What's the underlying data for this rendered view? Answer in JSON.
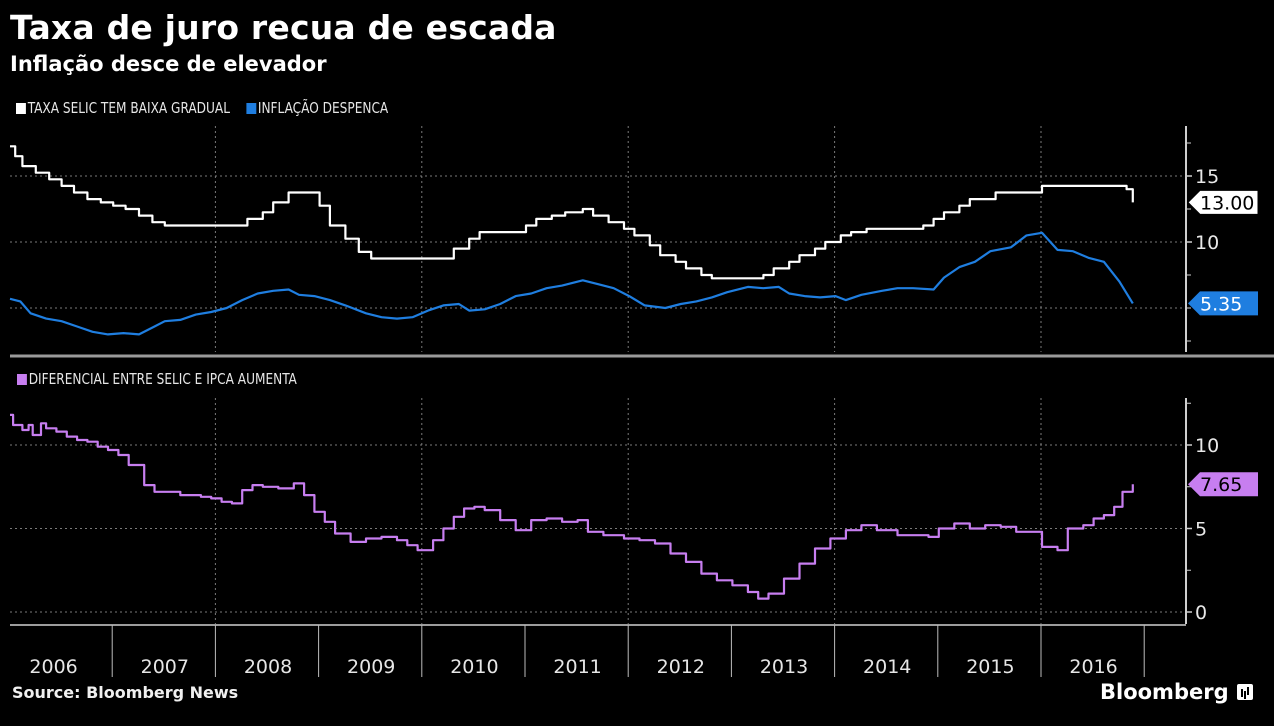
{
  "header": {
    "title": "Taxa de juro recua de escada",
    "subtitle": "Inflação desce de elevador"
  },
  "footer": {
    "source": "Source: Bloomberg News",
    "brand": "Bloomberg"
  },
  "colors": {
    "selic": "#ffffff",
    "ipca": "#1f7ee0",
    "spread": "#c77ef0",
    "grid": "#7a7a7a",
    "axis": "#cfcfcf"
  },
  "chart_data": [
    {
      "type": "line",
      "panel": "top",
      "title": "Taxa de juro recua de escada",
      "legend": [
        {
          "name": "TAXA SELIC TEM BAIXA GRADUAL",
          "color": "#ffffff"
        },
        {
          "name": "INFLAÇÃO DESPENCA",
          "color": "#1f7ee0"
        }
      ],
      "legend_position": "top-left",
      "ylim": [
        2,
        19
      ],
      "yticks": [
        15,
        10
      ],
      "ytick_labels": [
        "15",
        "10"
      ],
      "grid": true,
      "series": [
        {
          "name": "TAXA SELIC TEM BAIXA GRADUAL",
          "style": "step",
          "last_value_label": "13.00",
          "x": [
            2006.0,
            2006.05,
            2006.12,
            2006.25,
            2006.38,
            2006.5,
            2006.62,
            2006.75,
            2006.88,
            2007.0,
            2007.12,
            2007.25,
            2007.38,
            2007.5,
            2007.62,
            2008.3,
            2008.45,
            2008.55,
            2008.7,
            2008.75,
            2009.0,
            2009.1,
            2009.25,
            2009.38,
            2009.5,
            2010.3,
            2010.45,
            2010.55,
            2011.0,
            2011.1,
            2011.25,
            2011.38,
            2011.55,
            2011.65,
            2011.8,
            2011.95,
            2012.05,
            2012.2,
            2012.3,
            2012.45,
            2012.55,
            2012.7,
            2012.8,
            2013.3,
            2013.4,
            2013.55,
            2013.65,
            2013.8,
            2013.9,
            2014.05,
            2014.15,
            2014.3,
            2014.6,
            2014.85,
            2014.95,
            2015.05,
            2015.2,
            2015.3,
            2015.55,
            2016.0,
            2016.55,
            2016.82,
            2016.88
          ],
          "values": [
            17.25,
            16.5,
            15.75,
            15.25,
            14.75,
            14.25,
            13.75,
            13.25,
            13.0,
            12.75,
            12.5,
            12.0,
            11.5,
            11.25,
            11.25,
            11.75,
            12.25,
            13.0,
            13.75,
            13.75,
            12.75,
            11.25,
            10.25,
            9.25,
            8.75,
            9.5,
            10.25,
            10.75,
            11.25,
            11.75,
            12.0,
            12.25,
            12.5,
            12.0,
            11.5,
            11.0,
            10.5,
            9.75,
            9.0,
            8.5,
            8.0,
            7.5,
            7.25,
            7.5,
            8.0,
            8.5,
            9.0,
            9.5,
            10.0,
            10.5,
            10.75,
            11.0,
            11.0,
            11.25,
            11.75,
            12.25,
            12.75,
            13.25,
            13.75,
            14.25,
            14.25,
            14.0,
            13.0
          ]
        },
        {
          "name": "INFLAÇÃO DESPENCA",
          "style": "line",
          "last_value_label": "5.35",
          "x": [
            2006.0,
            2006.1,
            2006.2,
            2006.35,
            2006.5,
            2006.65,
            2006.8,
            2006.95,
            2007.1,
            2007.25,
            2007.4,
            2007.5,
            2007.65,
            2007.8,
            2007.95,
            2008.1,
            2008.25,
            2008.4,
            2008.55,
            2008.7,
            2008.8,
            2008.95,
            2009.1,
            2009.25,
            2009.45,
            2009.6,
            2009.75,
            2009.9,
            2010.05,
            2010.2,
            2010.35,
            2010.45,
            2010.6,
            2010.75,
            2010.9,
            2011.05,
            2011.2,
            2011.35,
            2011.55,
            2011.7,
            2011.85,
            2012.0,
            2012.15,
            2012.35,
            2012.5,
            2012.65,
            2012.8,
            2012.95,
            2013.15,
            2013.3,
            2013.45,
            2013.55,
            2013.7,
            2013.85,
            2014.0,
            2014.1,
            2014.25,
            2014.45,
            2014.6,
            2014.75,
            2014.95,
            2015.05,
            2015.2,
            2015.35,
            2015.5,
            2015.7,
            2015.85,
            2016.0,
            2016.15,
            2016.3,
            2016.45,
            2016.6,
            2016.75,
            2016.88
          ],
          "values": [
            5.7,
            5.5,
            4.6,
            4.2,
            4.0,
            3.6,
            3.2,
            3.0,
            3.1,
            3.0,
            3.6,
            4.0,
            4.1,
            4.5,
            4.7,
            5.0,
            5.6,
            6.1,
            6.3,
            6.4,
            6.0,
            5.9,
            5.6,
            5.2,
            4.6,
            4.3,
            4.2,
            4.3,
            4.8,
            5.2,
            5.3,
            4.8,
            4.9,
            5.3,
            5.9,
            6.1,
            6.5,
            6.7,
            7.1,
            6.8,
            6.5,
            5.9,
            5.2,
            5.0,
            5.3,
            5.5,
            5.8,
            6.2,
            6.6,
            6.5,
            6.6,
            6.1,
            5.9,
            5.8,
            5.9,
            5.6,
            6.0,
            6.3,
            6.5,
            6.5,
            6.4,
            7.3,
            8.1,
            8.5,
            9.3,
            9.6,
            10.5,
            10.7,
            9.4,
            9.3,
            8.8,
            8.5,
            7.0,
            5.35
          ]
        }
      ]
    },
    {
      "type": "line",
      "panel": "bottom",
      "title": "Diferencial entre Selic e IPCA",
      "legend": [
        {
          "name": "DIFERENCIAL ENTRE SELIC E IPCA AUMENTA",
          "color": "#c77ef0"
        }
      ],
      "legend_position": "top-left",
      "ylim": [
        -0.5,
        12.8
      ],
      "yticks": [
        10,
        5,
        0
      ],
      "ytick_labels": [
        "10",
        "5",
        "0"
      ],
      "grid": true,
      "series": [
        {
          "name": "DIFERENCIAL ENTRE SELIC E IPCA AUMENTA",
          "style": "step",
          "last_value_label": "7.65",
          "x": [
            2006.0,
            2006.03,
            2006.12,
            2006.18,
            2006.22,
            2006.3,
            2006.35,
            2006.45,
            2006.55,
            2006.65,
            2006.75,
            2006.85,
            2006.95,
            2007.05,
            2007.15,
            2007.3,
            2007.4,
            2007.5,
            2007.65,
            2007.85,
            2007.95,
            2008.05,
            2008.15,
            2008.25,
            2008.35,
            2008.45,
            2008.6,
            2008.75,
            2008.85,
            2008.95,
            2009.05,
            2009.15,
            2009.3,
            2009.45,
            2009.6,
            2009.75,
            2009.85,
            2009.95,
            2010.1,
            2010.2,
            2010.3,
            2010.4,
            2010.5,
            2010.6,
            2010.75,
            2010.9,
            2011.05,
            2011.2,
            2011.35,
            2011.5,
            2011.6,
            2011.75,
            2011.95,
            2012.1,
            2012.25,
            2012.4,
            2012.55,
            2012.7,
            2012.85,
            2013.0,
            2013.15,
            2013.25,
            2013.35,
            2013.5,
            2013.65,
            2013.8,
            2013.95,
            2014.1,
            2014.25,
            2014.4,
            2014.6,
            2014.75,
            2014.9,
            2015.0,
            2015.15,
            2015.3,
            2015.45,
            2015.6,
            2015.75,
            2015.9,
            2016.0,
            2016.15,
            2016.25,
            2016.4,
            2016.5,
            2016.6,
            2016.7,
            2016.78,
            2016.88
          ],
          "values": [
            11.8,
            11.2,
            10.9,
            11.2,
            10.6,
            11.3,
            11.0,
            10.8,
            10.5,
            10.3,
            10.2,
            9.9,
            9.7,
            9.4,
            8.8,
            7.6,
            7.2,
            7.2,
            7.0,
            6.9,
            6.8,
            6.6,
            6.5,
            7.3,
            7.6,
            7.5,
            7.4,
            7.7,
            7.0,
            6.0,
            5.4,
            4.7,
            4.2,
            4.4,
            4.5,
            4.3,
            4.0,
            3.7,
            4.3,
            5.0,
            5.7,
            6.2,
            6.3,
            6.1,
            5.5,
            4.9,
            5.5,
            5.6,
            5.4,
            5.5,
            4.8,
            4.6,
            4.4,
            4.3,
            4.1,
            3.5,
            3.0,
            2.3,
            1.9,
            1.6,
            1.2,
            0.8,
            1.1,
            2.0,
            2.9,
            3.8,
            4.4,
            4.9,
            5.2,
            4.9,
            4.6,
            4.6,
            4.5,
            5.0,
            5.3,
            5.0,
            5.2,
            5.1,
            4.8,
            4.8,
            3.9,
            3.7,
            5.0,
            5.2,
            5.6,
            5.8,
            6.3,
            7.2,
            7.65
          ]
        }
      ]
    }
  ],
  "xaxis": {
    "years": [
      "2006",
      "2007",
      "2008",
      "2009",
      "2010",
      "2011",
      "2012",
      "2013",
      "2014",
      "2015",
      "2016"
    ],
    "xlim": [
      2005.98,
      2017.1
    ]
  }
}
